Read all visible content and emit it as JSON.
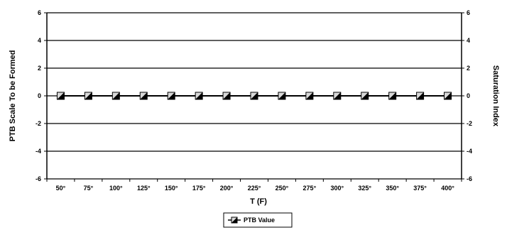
{
  "chart_data": {
    "type": "line",
    "title": "",
    "xlabel": "T (F)",
    "ylabel": "PTB Scale To be Formed",
    "y2label": "Saturation Index",
    "categories": [
      "50°",
      "75°",
      "100°",
      "125°",
      "150°",
      "175°",
      "200°",
      "225°",
      "250°",
      "275°",
      "300°",
      "325°",
      "350°",
      "375°",
      "400°"
    ],
    "ylim": [
      -6,
      6
    ],
    "y2lim": [
      -6,
      6
    ],
    "yticks": [
      "6",
      "4",
      "2",
      "0",
      "-2",
      "-4",
      "-6"
    ],
    "y2ticks": [
      "6",
      "4",
      "2",
      "0",
      "-2",
      "-4",
      "-6"
    ],
    "grid": true,
    "legend_position": "bottom-center",
    "series": [
      {
        "name": "PTB Value",
        "axis": "left",
        "marker": "square",
        "color": "#000000",
        "values": [
          0,
          0,
          0,
          0,
          0,
          0,
          0,
          0,
          0,
          0,
          0,
          0,
          0,
          0,
          0
        ]
      }
    ]
  }
}
